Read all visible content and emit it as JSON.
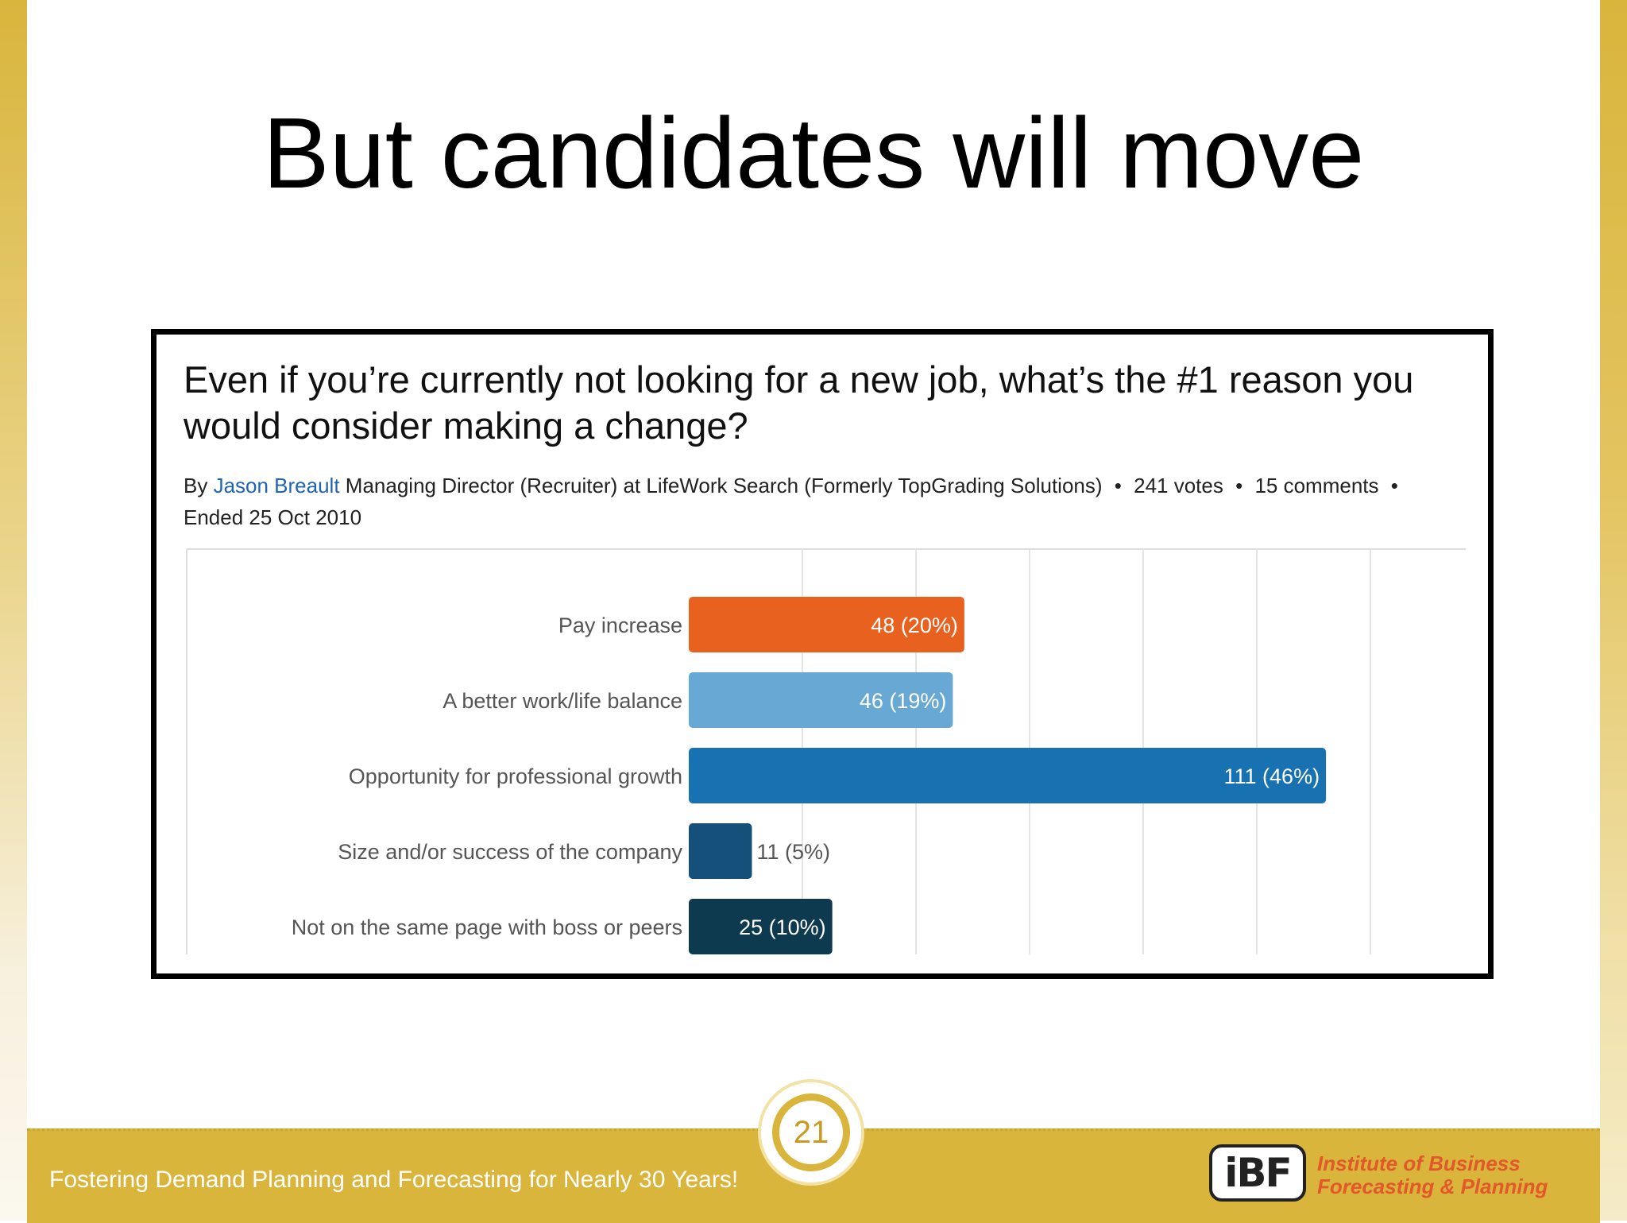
{
  "slide": {
    "title": "But candidates will move",
    "page_number": "21"
  },
  "poll": {
    "question": "Even if you’re currently not looking for a new job, what’s the #1 reason you would consider making a change?",
    "by_label": "By",
    "author": "Jason Breault",
    "author_detail": "Managing Director (Recruiter) at LifeWork Search (Formerly TopGrading Solutions)",
    "votes": "241 votes",
    "comments": "15 comments",
    "ended": "Ended 25 Oct 2010"
  },
  "chart_data": {
    "type": "bar",
    "orientation": "horizontal",
    "categories": [
      "Pay increase",
      "A better work/life balance",
      "Opportunity for professional growth",
      "Size and/or success of the company",
      "Not on the same page with boss or peers"
    ],
    "values": [
      48,
      46,
      111,
      11,
      25
    ],
    "data_labels": [
      "48 (20%)",
      "46 (19%)",
      "111 (46%)",
      "11 (5%)",
      "25 (10%)"
    ],
    "colors": [
      "#e8611f",
      "#67a8d4",
      "#1871b0",
      "#145079",
      "#0d3a4f"
    ],
    "grid": true
  },
  "footer": {
    "tagline": "Fostering Demand Planning and Forecasting for Nearly 30 Years!",
    "logo_text_line1": "Institute of Business",
    "logo_text_line2": "Forecasting & Planning",
    "logo_mark": "iBF"
  },
  "colors": {
    "gold": "#d9b53c",
    "logo_orange": "#e2582b",
    "link_blue": "#1f63b3"
  }
}
